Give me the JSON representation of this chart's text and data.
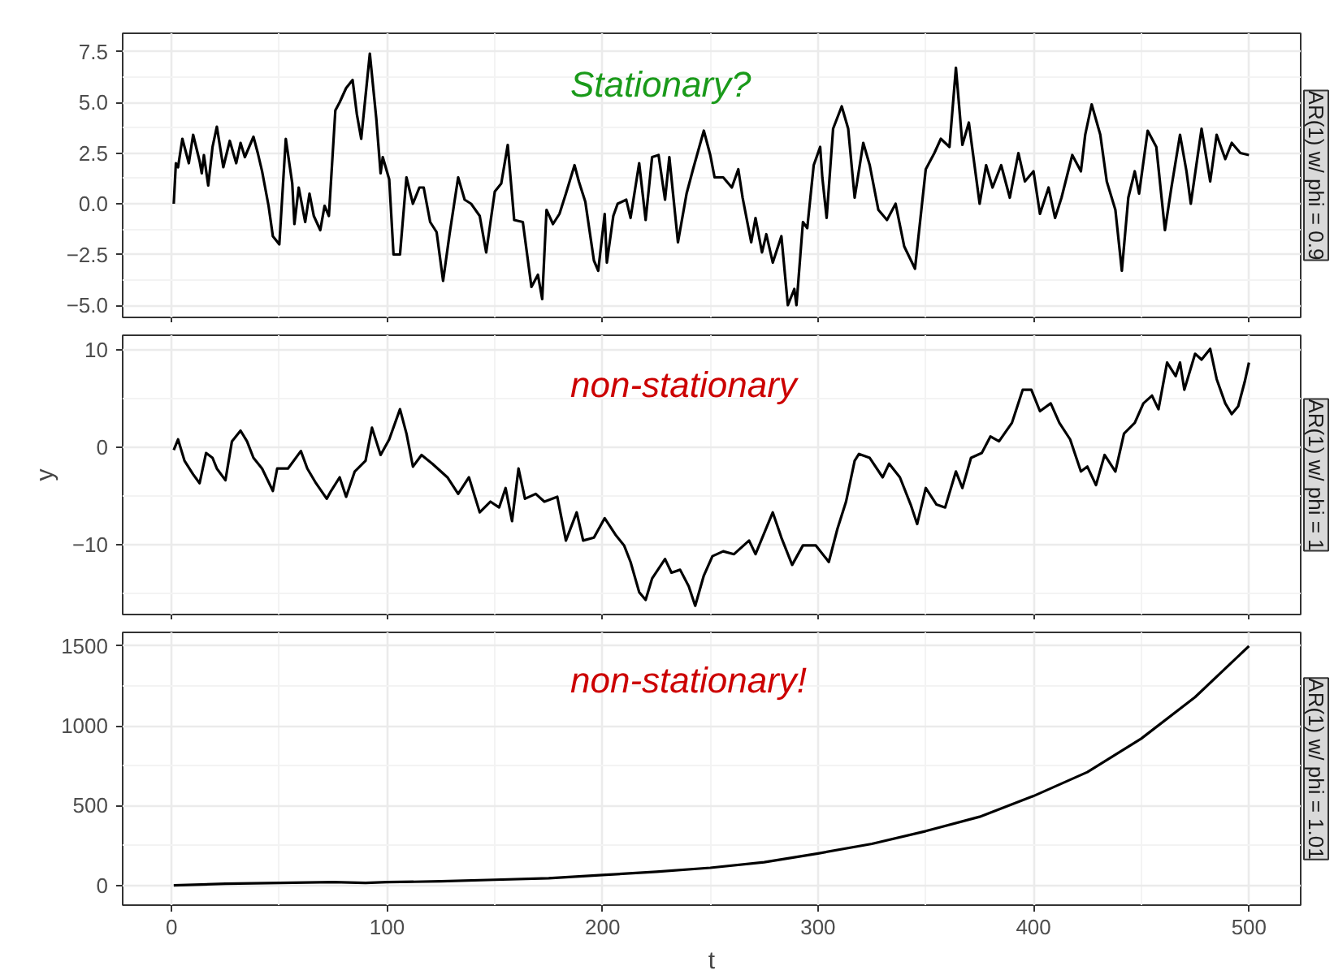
{
  "chart_data": [
    {
      "type": "line",
      "title": "AR(1) w/ phi = 0.9",
      "tick_labels": "y",
      "grid": true,
      "annotations": [
        "Stationary?"
      ],
      "xlim": [
        -22.7,
        524
      ],
      "xticks": [
        0,
        100,
        200,
        300,
        400,
        500
      ],
      "ylim": [
        -5.6,
        8.4
      ],
      "yticks": [
        {
          "value": -5.0,
          "label": "−5.0"
        },
        {
          "value": -2.5,
          "label": "−2.5"
        },
        {
          "value": 0,
          "label": "0.0"
        },
        {
          "value": 2.5,
          "label": "2.5"
        },
        {
          "value": 5.0,
          "label": "5.0"
        },
        {
          "value": 7.5,
          "label": "7.5"
        }
      ],
      "x": [
        1,
        2,
        3,
        5,
        8,
        10,
        13,
        14,
        15,
        17,
        19,
        21,
        24,
        27,
        30,
        32,
        34,
        38,
        40,
        42,
        45,
        47,
        50,
        53,
        56,
        57,
        59,
        62,
        64,
        66,
        69,
        71,
        73,
        76,
        78,
        81,
        84,
        86,
        88,
        92,
        95,
        97,
        98,
        101,
        103,
        106,
        109,
        112,
        115,
        117,
        120,
        123,
        126,
        129,
        133,
        136,
        139,
        143,
        146,
        150,
        153,
        156,
        159,
        163,
        167,
        170,
        172,
        174,
        177,
        180,
        183,
        187,
        189,
        192,
        196,
        198,
        201,
        202,
        205,
        207,
        211,
        213,
        217,
        220,
        223,
        226,
        229,
        231,
        235,
        239,
        242,
        247,
        250,
        252,
        256,
        260,
        263,
        265,
        269,
        271,
        274,
        276,
        279,
        283,
        286,
        289,
        290,
        293,
        295,
        298,
        301,
        302,
        304,
        307,
        311,
        314,
        317,
        321,
        324,
        328,
        332,
        336,
        340,
        345,
        350,
        354,
        357,
        361,
        364,
        367,
        370,
        372,
        375,
        378,
        381,
        385,
        389,
        393,
        396,
        400,
        403,
        407,
        410,
        413,
        418,
        422,
        424,
        427,
        431,
        434,
        438,
        441,
        444,
        447,
        449,
        453,
        457,
        461,
        464,
        468,
        471,
        473,
        478,
        482,
        485,
        489,
        492,
        496,
        500
      ],
      "series": [
        {
          "color": "#000000",
          "values": [
            0.0,
            2.0,
            1.8,
            3.2,
            2.0,
            3.4,
            2.1,
            1.5,
            2.4,
            0.9,
            2.8,
            3.8,
            1.8,
            3.1,
            2.0,
            3.0,
            2.3,
            3.3,
            2.5,
            1.6,
            -0.1,
            -1.6,
            -2.0,
            3.2,
            1.0,
            -1.0,
            0.8,
            -0.9,
            0.5,
            -0.6,
            -1.3,
            -0.1,
            -0.6,
            4.6,
            5.0,
            5.7,
            6.1,
            4.4,
            3.2,
            7.4,
            4.2,
            1.5,
            2.3,
            1.2,
            -2.5,
            -2.5,
            1.3,
            0.0,
            0.8,
            0.8,
            -0.9,
            -1.4,
            -3.8,
            -1.5,
            1.3,
            0.2,
            0.0,
            -0.6,
            -2.4,
            0.6,
            1.0,
            2.9,
            -0.8,
            -0.9,
            -4.1,
            -3.5,
            -4.7,
            -0.3,
            -1.0,
            -0.5,
            0.5,
            1.9,
            1.1,
            0.1,
            -2.8,
            -3.3,
            -0.5,
            -2.9,
            -0.6,
            0.0,
            0.2,
            -0.7,
            2.0,
            -0.8,
            2.3,
            2.4,
            0.2,
            2.3,
            -1.9,
            0.5,
            1.7,
            3.6,
            2.4,
            1.3,
            1.3,
            0.8,
            1.7,
            0.3,
            -1.9,
            -0.7,
            -2.4,
            -1.5,
            -2.9,
            -1.6,
            -5.0,
            -4.2,
            -5.0,
            -0.9,
            -1.2,
            1.9,
            2.8,
            1.3,
            -0.7,
            3.7,
            4.8,
            3.7,
            0.3,
            3.0,
            1.9,
            -0.3,
            -0.8,
            0.0,
            -2.1,
            -3.2,
            1.7,
            2.5,
            3.2,
            2.8,
            6.7,
            2.9,
            4.0,
            2.4,
            0.0,
            1.9,
            0.8,
            1.9,
            0.3,
            2.5,
            1.1,
            1.6,
            -0.5,
            0.8,
            -0.7,
            0.3,
            2.4,
            1.6,
            3.4,
            4.9,
            3.4,
            1.1,
            -0.3,
            -3.3,
            0.3,
            1.6,
            0.5,
            3.6,
            2.8,
            -1.3,
            0.8,
            3.4,
            1.6,
            0.0,
            3.7,
            1.1,
            3.4,
            2.2,
            3.0,
            2.5,
            2.4
          ]
        }
      ]
    },
    {
      "type": "line",
      "title": "AR(1) w/ phi = 1",
      "ylabel": "y",
      "tick_labels": "y",
      "grid": true,
      "annotations": [
        "non-stationary"
      ],
      "xlim": [
        -22.7,
        524
      ],
      "xticks": [
        0,
        100,
        200,
        300,
        400,
        500
      ],
      "ylim": [
        -17.2,
        11.5
      ],
      "yticks": [
        {
          "value": -10,
          "label": "−10"
        },
        0,
        10
      ],
      "x": [
        1,
        3,
        6,
        10,
        13,
        16,
        19,
        21,
        25,
        28,
        32,
        35,
        38,
        42,
        47,
        49,
        54,
        60,
        63,
        67,
        72,
        74,
        78,
        81,
        85,
        90,
        93,
        97,
        101,
        106,
        109,
        112,
        116,
        121,
        128,
        133,
        138,
        143,
        148,
        152,
        155,
        158,
        161,
        164,
        169,
        173,
        179,
        183,
        188,
        191,
        196,
        201,
        206,
        210,
        213,
        217,
        220,
        223,
        229,
        232,
        236,
        240,
        243,
        247,
        251,
        256,
        261,
        268,
        271,
        279,
        283,
        288,
        293,
        299,
        305,
        309,
        313,
        317,
        319,
        324,
        330,
        333,
        338,
        343,
        346,
        350,
        355,
        359,
        364,
        367,
        371,
        376,
        380,
        384,
        390,
        395,
        399,
        403,
        408,
        412,
        417,
        422,
        425,
        429,
        433,
        438,
        442,
        447,
        451,
        455,
        458,
        462,
        466,
        468,
        470,
        475,
        478,
        482,
        485,
        489,
        492,
        495,
        498,
        500
      ],
      "series": [
        {
          "color": "#000000",
          "values": [
            -0.3,
            0.8,
            -1.4,
            -2.8,
            -3.7,
            -0.6,
            -1.1,
            -2.2,
            -3.4,
            0.6,
            1.7,
            0.6,
            -1.1,
            -2.2,
            -4.5,
            -2.2,
            -2.2,
            -0.4,
            -2.2,
            -3.7,
            -5.3,
            -4.5,
            -3.1,
            -5.1,
            -2.5,
            -1.4,
            2.0,
            -0.8,
            0.8,
            3.9,
            1.4,
            -2.0,
            -0.8,
            -1.7,
            -3.1,
            -4.8,
            -3.1,
            -6.7,
            -5.6,
            -6.2,
            -4.2,
            -7.6,
            -2.2,
            -5.3,
            -4.8,
            -5.6,
            -5.1,
            -9.6,
            -6.7,
            -9.6,
            -9.3,
            -7.3,
            -9.0,
            -10.1,
            -11.8,
            -14.9,
            -15.7,
            -13.5,
            -11.5,
            -12.9,
            -12.6,
            -14.3,
            -16.3,
            -13.2,
            -11.2,
            -10.7,
            -11.0,
            -9.6,
            -11.0,
            -6.7,
            -9.3,
            -12.1,
            -10.1,
            -10.1,
            -11.8,
            -8.4,
            -5.6,
            -1.4,
            -0.7,
            -1.1,
            -3.1,
            -1.7,
            -3.1,
            -5.9,
            -7.9,
            -4.2,
            -5.9,
            -6.2,
            -2.5,
            -4.2,
            -1.1,
            -0.6,
            1.1,
            0.6,
            2.5,
            5.9,
            5.9,
            3.7,
            4.5,
            2.5,
            0.8,
            -2.5,
            -2.0,
            -3.9,
            -0.8,
            -2.5,
            1.4,
            2.5,
            4.5,
            5.3,
            3.9,
            8.7,
            7.3,
            8.7,
            5.9,
            9.6,
            9.0,
            10.1,
            7.0,
            4.5,
            3.4,
            4.2,
            6.7,
            8.7
          ]
        }
      ]
    },
    {
      "type": "line",
      "title": "AR(1) w/ phi = 1.01",
      "xlabel": "t",
      "grid": true,
      "annotations": [
        "non-stationary!"
      ],
      "xlim": [
        -22.7,
        524
      ],
      "xticks": [
        0,
        100,
        200,
        300,
        400,
        500
      ],
      "ylim": [
        -124,
        1586
      ],
      "yticks": [
        0,
        500,
        1000,
        1500
      ],
      "x": [
        1,
        25,
        50,
        75,
        90,
        100,
        125,
        150,
        175,
        200,
        225,
        250,
        275,
        300,
        325,
        350,
        375,
        400,
        425,
        450,
        475,
        500
      ],
      "series": [
        {
          "color": "#000000",
          "values": [
            0,
            10,
            15,
            20,
            15,
            20,
            25,
            35,
            45,
            65,
            85,
            110,
            145,
            200,
            260,
            340,
            430,
            560,
            710,
            920,
            1180,
            1500
          ]
        }
      ]
    }
  ]
}
